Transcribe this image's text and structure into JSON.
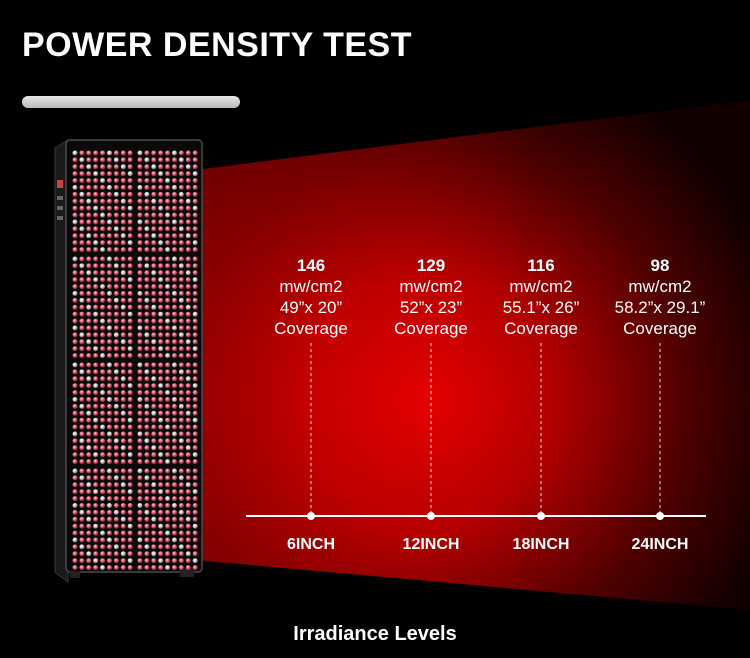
{
  "title": "POWER DENSITY TEST",
  "footer": "Irradiance Levels",
  "colors": {
    "background": "#000000",
    "beam_red": "#d40000",
    "led_red": "#e8667a",
    "text": "#ffffff"
  },
  "device": {
    "name": "red-light-therapy-panel",
    "led_zones": 8
  },
  "measurements": [
    {
      "value": "146",
      "unit": "mw/cm2",
      "coverage": "49”x 20”",
      "coverage_label": "Coverage",
      "distance": "6INCH"
    },
    {
      "value": "129",
      "unit": "mw/cm2",
      "coverage": "52”x 23”",
      "coverage_label": "Coverage",
      "distance": "12INCH"
    },
    {
      "value": "116",
      "unit": "mw/cm2",
      "coverage": "55.1”x 26”",
      "coverage_label": "Coverage",
      "distance": "18INCH"
    },
    {
      "value": "98",
      "unit": "mw/cm2",
      "coverage": "58.2”x 29.1”",
      "coverage_label": "Coverage",
      "distance": "24INCH"
    }
  ]
}
